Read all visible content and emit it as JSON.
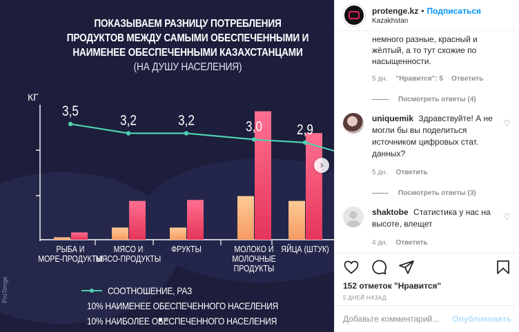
{
  "post": {
    "title_main": "Показываем разницу потребления продуктов между самыми обеспеченными и наименее обеспеченными казахстанцами",
    "title_sub": "(на душу населения)",
    "watermark": "ProTenge",
    "nav_next_icon": "chevron-right-icon",
    "active_slide": 1,
    "slide_count": 2
  },
  "chart_data": {
    "type": "bar",
    "ylabel": "КГ",
    "categories": [
      "Рыба и море-продукты",
      "Мясо и мясо-продукты",
      "Фрукты",
      "Молоко и молочные продукты",
      "Яйца (штук)"
    ],
    "series": [
      {
        "name": "10% наименее обеспеченного населения",
        "color": "#ffb27a",
        "values": [
          0.05,
          0.25,
          0.25,
          0.9,
          0.8
        ]
      },
      {
        "name": "10% наиболее обеспеченного населения",
        "color": "#f04a6e",
        "values": [
          0.15,
          0.8,
          0.82,
          2.65,
          2.2
        ]
      }
    ],
    "line_series": {
      "name": "Соотношение, раз",
      "color": "#4fd0b0",
      "values": [
        3.5,
        3.2,
        3.2,
        3.0,
        2.9
      ]
    },
    "value_labels": [
      "3,5",
      "3,2",
      "3,2",
      "3,0",
      "2,9"
    ],
    "grid": false,
    "legend": "bottom"
  },
  "sidebar": {
    "username": "protenge.kz",
    "separator": "•",
    "follow_label": "Подписаться",
    "location": "Kazakhstan",
    "comment_continuation": "немного разные, красный и жёлтый, а то тут схожие по насыщенности.",
    "comment_cont_meta": {
      "time": "5 дн.",
      "likes": "\"Нравится\": 5",
      "reply": "Ответить"
    },
    "view_replies_1": "Посмотреть ответы (4)",
    "comments": [
      {
        "username": "uniquemik",
        "text": "Здравствуйте! А не могли бы вы поделиться источником цифровых стат. данных?",
        "time": "5 дн.",
        "reply": "Ответить",
        "view_replies": "Посмотреть ответы (3)"
      },
      {
        "username": "shaktobe",
        "text": "Статистика у нас на высоте, влещет",
        "time": "4 дн.",
        "reply": "Ответить"
      }
    ],
    "actions": {
      "like_icon": "heart-icon",
      "comment_icon": "comment-icon",
      "share_icon": "share-icon",
      "save_icon": "bookmark-icon"
    },
    "likes_text": "152 отметок \"Нравится\"",
    "post_time": "5 ДНЕЙ НАЗАД",
    "add_comment_placeholder": "Добавьте комментарий...",
    "publish_label": "Опубликовать"
  }
}
